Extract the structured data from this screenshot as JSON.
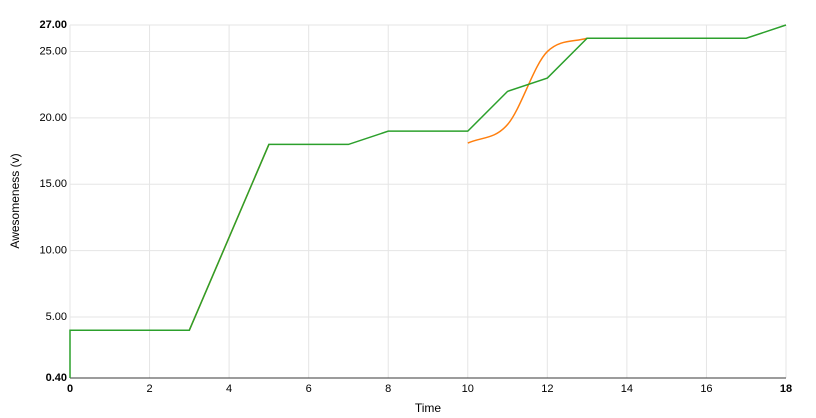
{
  "chart_data": {
    "type": "line",
    "x_label": "Time",
    "y_label": "Awesomeness (v)",
    "xlim": [
      0,
      18
    ],
    "xticks": [
      0,
      2,
      4,
      6,
      8,
      10,
      12,
      14,
      16,
      18
    ],
    "ylim": [
      0.4,
      27
    ],
    "yticks": [
      {
        "value": 0.4,
        "label": "0.40"
      },
      {
        "value": 5,
        "label": "5.00"
      },
      {
        "value": 10,
        "label": "10.00"
      },
      {
        "value": 15,
        "label": "15.00"
      },
      {
        "value": 20,
        "label": "20.00"
      },
      {
        "value": 25,
        "label": "25.00"
      },
      {
        "value": 27,
        "label": "27.00"
      }
    ],
    "grid": true,
    "series": [
      {
        "color": "#ff7f0e",
        "interpolate": "monotone",
        "x": [
          3,
          4,
          5,
          6,
          7,
          8,
          9,
          10,
          11,
          12,
          13
        ],
        "values": [
          4,
          11,
          18,
          null,
          null,
          null,
          null,
          18.1,
          19.5,
          25,
          26
        ]
      },
      {
        "color": "#2ca02c",
        "interpolate": "linear",
        "x": [
          0,
          0,
          3,
          5,
          7,
          8,
          10,
          11,
          12,
          13,
          17,
          18
        ],
        "values": [
          0.4,
          4,
          4,
          18,
          18,
          19,
          19,
          22,
          23,
          26,
          26,
          27
        ]
      }
    ]
  }
}
